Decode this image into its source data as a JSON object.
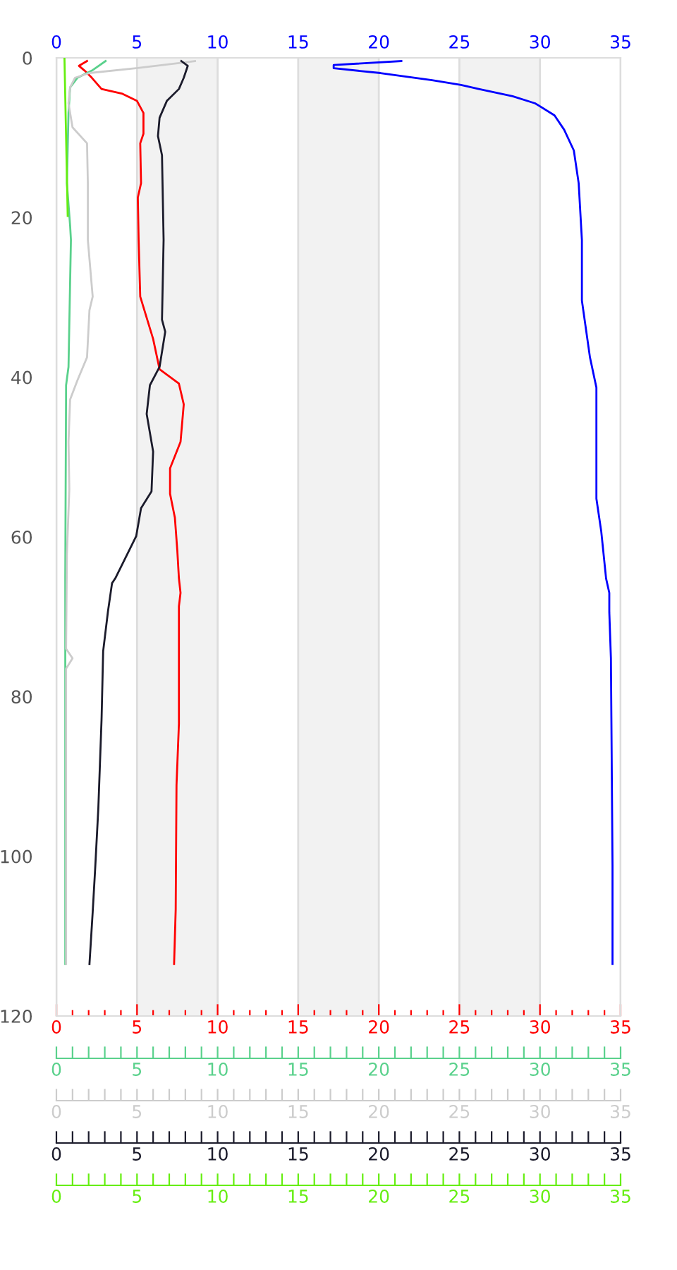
{
  "chart_data": [
    {
      "type": "line",
      "ylim": [
        120,
        0
      ],
      "yticks": [
        0,
        20,
        40,
        60,
        80,
        100,
        120
      ],
      "grid": "x",
      "line_style": "solid",
      "marker": "none",
      "xlim": [
        0,
        35
      ],
      "xticks": [
        0,
        {
          "value": 1,
          "label": null
        },
        {
          "value": 2,
          "label": null
        },
        {
          "value": 3,
          "label": null
        },
        {
          "value": 4,
          "label": null
        },
        5,
        {
          "value": 6,
          "label": null
        },
        {
          "value": 7,
          "label": null
        },
        {
          "value": 8,
          "label": null
        },
        {
          "value": 9,
          "label": null
        },
        10,
        {
          "value": 11,
          "label": null
        },
        {
          "value": 12,
          "label": null
        },
        {
          "value": 13,
          "label": null
        },
        {
          "value": 14,
          "label": null
        },
        15,
        {
          "value": 16,
          "label": null
        },
        {
          "value": 17,
          "label": null
        },
        {
          "value": 18,
          "label": null
        },
        {
          "value": 19,
          "label": null
        },
        20,
        {
          "value": 21,
          "label": null
        },
        {
          "value": 22,
          "label": null
        },
        {
          "value": 23,
          "label": null
        },
        {
          "value": 24,
          "label": null
        },
        25,
        {
          "value": 26,
          "label": null
        },
        {
          "value": 27,
          "label": null
        },
        {
          "value": 28,
          "label": null
        },
        {
          "value": 29,
          "label": null
        },
        30,
        {
          "value": 31,
          "label": null
        },
        {
          "value": 32,
          "label": null
        },
        {
          "value": 33,
          "label": null
        },
        {
          "value": 34,
          "label": null
        },
        35
      ],
      "x2lim": [
        0,
        35
      ],
      "x2ticks": [
        0,
        5,
        10,
        15,
        20,
        25,
        30,
        35
      ],
      "bands": [
        {
          "axis": "x",
          "from": 5,
          "to": 10,
          "color": "#f2f2f2"
        },
        {
          "axis": "x",
          "from": 15,
          "to": 20,
          "color": "#f2f2f2"
        },
        {
          "axis": "x",
          "from": 25,
          "to": 30,
          "color": "#f2f2f2"
        }
      ],
      "series": [
        {
          "axis": "x2",
          "color": "#0000ff",
          "x": [
            21.4,
            17.2,
            17.2,
            20.1,
            23.3,
            25.1,
            26.2,
            28.3,
            29.7,
            30.9,
            31.5,
            32.1,
            32.4,
            32.6,
            32.6,
            33.1,
            33.5,
            33.5,
            33.5,
            33.8,
            34.1,
            34.3,
            34.3,
            34.4,
            34.5,
            34.5
          ],
          "values": [
            0.4,
            0.9,
            1.3,
            1.9,
            2.8,
            3.4,
            3.9,
            4.8,
            5.7,
            7.2,
            9.0,
            11.6,
            15.7,
            22.8,
            30.4,
            37.5,
            41.3,
            44.6,
            55.2,
            59.3,
            65.2,
            67.0,
            69.4,
            75.2,
            101.1,
            113.5
          ]
        },
        {
          "color": "#ff0000",
          "x": [
            1.9,
            1.4,
            1.75,
            2.2,
            2.8,
            4.1,
            5.0,
            5.4,
            5.4,
            5.2,
            5.25,
            5.05,
            5.1,
            5.2,
            6.0,
            6.4,
            7.6,
            7.9,
            7.7,
            7.05,
            7.05,
            7.35,
            7.5,
            7.6,
            7.7,
            7.6,
            7.6,
            7.45,
            7.4,
            7.3
          ],
          "values": [
            0.4,
            1.0,
            1.6,
            2.5,
            3.9,
            4.5,
            5.4,
            6.9,
            9.5,
            10.7,
            15.7,
            17.5,
            22.8,
            29.9,
            35.2,
            39.0,
            40.8,
            43.4,
            48.1,
            51.4,
            54.6,
            57.6,
            61.7,
            65.2,
            67.0,
            68.7,
            83.4,
            91.1,
            106.7,
            113.5
          ]
        }
      ]
    },
    {
      "type": "line",
      "tick_labels": "x",
      "ylim": [
        120,
        0
      ],
      "line_style": "solid",
      "marker": "none",
      "xlim": [
        0,
        35
      ],
      "xticks": [
        0,
        {
          "value": 1,
          "label": null
        },
        {
          "value": 2,
          "label": null
        },
        {
          "value": 3,
          "label": null
        },
        {
          "value": 4,
          "label": null
        },
        5,
        {
          "value": 6,
          "label": null
        },
        {
          "value": 7,
          "label": null
        },
        {
          "value": 8,
          "label": null
        },
        {
          "value": 9,
          "label": null
        },
        10,
        {
          "value": 11,
          "label": null
        },
        {
          "value": 12,
          "label": null
        },
        {
          "value": 13,
          "label": null
        },
        {
          "value": 14,
          "label": null
        },
        15,
        {
          "value": 16,
          "label": null
        },
        {
          "value": 17,
          "label": null
        },
        {
          "value": 18,
          "label": null
        },
        {
          "value": 19,
          "label": null
        },
        20,
        {
          "value": 21,
          "label": null
        },
        {
          "value": 22,
          "label": null
        },
        {
          "value": 23,
          "label": null
        },
        {
          "value": 24,
          "label": null
        },
        25,
        {
          "value": 26,
          "label": null
        },
        {
          "value": 27,
          "label": null
        },
        {
          "value": 28,
          "label": null
        },
        {
          "value": 29,
          "label": null
        },
        30,
        {
          "value": 31,
          "label": null
        },
        {
          "value": 32,
          "label": null
        },
        {
          "value": 33,
          "label": null
        },
        {
          "value": 34,
          "label": null
        },
        35
      ],
      "series": [
        {
          "color": "#5ad18c",
          "x": [
            3.05,
            2.2,
            1.3,
            0.85,
            0.75,
            0.65,
            0.85,
            0.9,
            0.75,
            0.6,
            0.55,
            0.55
          ],
          "values": [
            0.4,
            1.6,
            2.5,
            3.7,
            6.9,
            15.7,
            21.0,
            22.8,
            38.7,
            41.0,
            65.2,
            113.5
          ]
        }
      ]
    },
    {
      "type": "line",
      "tick_labels": "x",
      "ylim": [
        120,
        0
      ],
      "line_style": "solid",
      "marker": "none",
      "xlim": [
        0,
        35
      ],
      "xticks": [
        0,
        {
          "value": 1,
          "label": null
        },
        {
          "value": 2,
          "label": null
        },
        {
          "value": 3,
          "label": null
        },
        {
          "value": 4,
          "label": null
        },
        5,
        {
          "value": 6,
          "label": null
        },
        {
          "value": 7,
          "label": null
        },
        {
          "value": 8,
          "label": null
        },
        {
          "value": 9,
          "label": null
        },
        10,
        {
          "value": 11,
          "label": null
        },
        {
          "value": 12,
          "label": null
        },
        {
          "value": 13,
          "label": null
        },
        {
          "value": 14,
          "label": null
        },
        15,
        {
          "value": 16,
          "label": null
        },
        {
          "value": 17,
          "label": null
        },
        {
          "value": 18,
          "label": null
        },
        {
          "value": 19,
          "label": null
        },
        20,
        {
          "value": 21,
          "label": null
        },
        {
          "value": 22,
          "label": null
        },
        {
          "value": 23,
          "label": null
        },
        {
          "value": 24,
          "label": null
        },
        25,
        {
          "value": 26,
          "label": null
        },
        {
          "value": 27,
          "label": null
        },
        {
          "value": 28,
          "label": null
        },
        {
          "value": 29,
          "label": null
        },
        30,
        {
          "value": 31,
          "label": null
        },
        {
          "value": 32,
          "label": null
        },
        {
          "value": 33,
          "label": null
        },
        {
          "value": 34,
          "label": null
        },
        35
      ],
      "series": [
        {
          "color": "#cccccc",
          "x": [
            8.6,
            4.95,
            2.05,
            1.15,
            0.85,
            0.75,
            1.0,
            1.9,
            1.95,
            1.95,
            2.25,
            2.05,
            1.9,
            1.3,
            0.85,
            0.75,
            0.8,
            0.65,
            0.6,
            1.0,
            0.6,
            0.6
          ],
          "values": [
            0.4,
            1.3,
            1.9,
            2.5,
            3.7,
            5.7,
            8.7,
            10.7,
            15.7,
            22.8,
            29.9,
            31.6,
            37.5,
            40.4,
            42.8,
            48.1,
            54.0,
            62.2,
            74.0,
            75.2,
            76.5,
            113.5
          ]
        }
      ]
    },
    {
      "type": "line",
      "tick_labels": "x",
      "ylim": [
        120,
        0
      ],
      "line_style": "solid",
      "marker": "none",
      "xlim": [
        0,
        35
      ],
      "xticks": [
        0,
        {
          "value": 1,
          "label": null
        },
        {
          "value": 2,
          "label": null
        },
        {
          "value": 3,
          "label": null
        },
        {
          "value": 4,
          "label": null
        },
        5,
        {
          "value": 6,
          "label": null
        },
        {
          "value": 7,
          "label": null
        },
        {
          "value": 8,
          "label": null
        },
        {
          "value": 9,
          "label": null
        },
        10,
        {
          "value": 11,
          "label": null
        },
        {
          "value": 12,
          "label": null
        },
        {
          "value": 13,
          "label": null
        },
        {
          "value": 14,
          "label": null
        },
        15,
        {
          "value": 16,
          "label": null
        },
        {
          "value": 17,
          "label": null
        },
        {
          "value": 18,
          "label": null
        },
        {
          "value": 19,
          "label": null
        },
        20,
        {
          "value": 21,
          "label": null
        },
        {
          "value": 22,
          "label": null
        },
        {
          "value": 23,
          "label": null
        },
        {
          "value": 24,
          "label": null
        },
        25,
        {
          "value": 26,
          "label": null
        },
        {
          "value": 27,
          "label": null
        },
        {
          "value": 28,
          "label": null
        },
        {
          "value": 29,
          "label": null
        },
        30,
        {
          "value": 31,
          "label": null
        },
        {
          "value": 32,
          "label": null
        },
        {
          "value": 33,
          "label": null
        },
        {
          "value": 34,
          "label": null
        },
        35
      ],
      "series": [
        {
          "color": "#1b1b2b",
          "x": [
            7.75,
            8.15,
            7.9,
            7.6,
            6.85,
            6.4,
            6.3,
            6.55,
            6.65,
            6.55,
            6.75,
            6.4,
            5.8,
            5.6,
            6.0,
            5.9,
            5.25,
            4.95,
            3.65,
            3.45,
            3.2,
            2.9,
            2.8,
            2.6,
            2.4,
            2.25,
            2.05
          ],
          "values": [
            0.4,
            1.0,
            2.5,
            3.9,
            5.4,
            7.5,
            9.8,
            12.2,
            22.8,
            32.8,
            34.3,
            38.7,
            41.0,
            44.6,
            49.3,
            54.3,
            56.4,
            59.9,
            65.2,
            65.8,
            69.3,
            74.3,
            82.9,
            94.0,
            101.7,
            107.0,
            113.5
          ]
        }
      ]
    },
    {
      "type": "line",
      "tick_labels": "x",
      "ylim": [
        120,
        0
      ],
      "line_style": "solid",
      "marker": "none",
      "xlim": [
        0,
        35
      ],
      "xticks": [
        0,
        {
          "value": 1,
          "label": null
        },
        {
          "value": 2,
          "label": null
        },
        {
          "value": 3,
          "label": null
        },
        {
          "value": 4,
          "label": null
        },
        5,
        {
          "value": 6,
          "label": null
        },
        {
          "value": 7,
          "label": null
        },
        {
          "value": 8,
          "label": null
        },
        {
          "value": 9,
          "label": null
        },
        10,
        {
          "value": 11,
          "label": null
        },
        {
          "value": 12,
          "label": null
        },
        {
          "value": 13,
          "label": null
        },
        {
          "value": 14,
          "label": null
        },
        15,
        {
          "value": 16,
          "label": null
        },
        {
          "value": 17,
          "label": null
        },
        {
          "value": 18,
          "label": null
        },
        {
          "value": 19,
          "label": null
        },
        20,
        {
          "value": 21,
          "label": null
        },
        {
          "value": 22,
          "label": null
        },
        {
          "value": 23,
          "label": null
        },
        {
          "value": 24,
          "label": null
        },
        25,
        {
          "value": 26,
          "label": null
        },
        {
          "value": 27,
          "label": null
        },
        {
          "value": 28,
          "label": null
        },
        {
          "value": 29,
          "label": null
        },
        30,
        {
          "value": 31,
          "label": null
        },
        {
          "value": 32,
          "label": null
        },
        {
          "value": 33,
          "label": null
        },
        {
          "value": 34,
          "label": null
        },
        35
      ],
      "series": [
        {
          "color": "#66ee11",
          "x": [
            0.5,
            0.7
          ],
          "values": [
            0.1,
            19.8
          ]
        }
      ]
    }
  ]
}
